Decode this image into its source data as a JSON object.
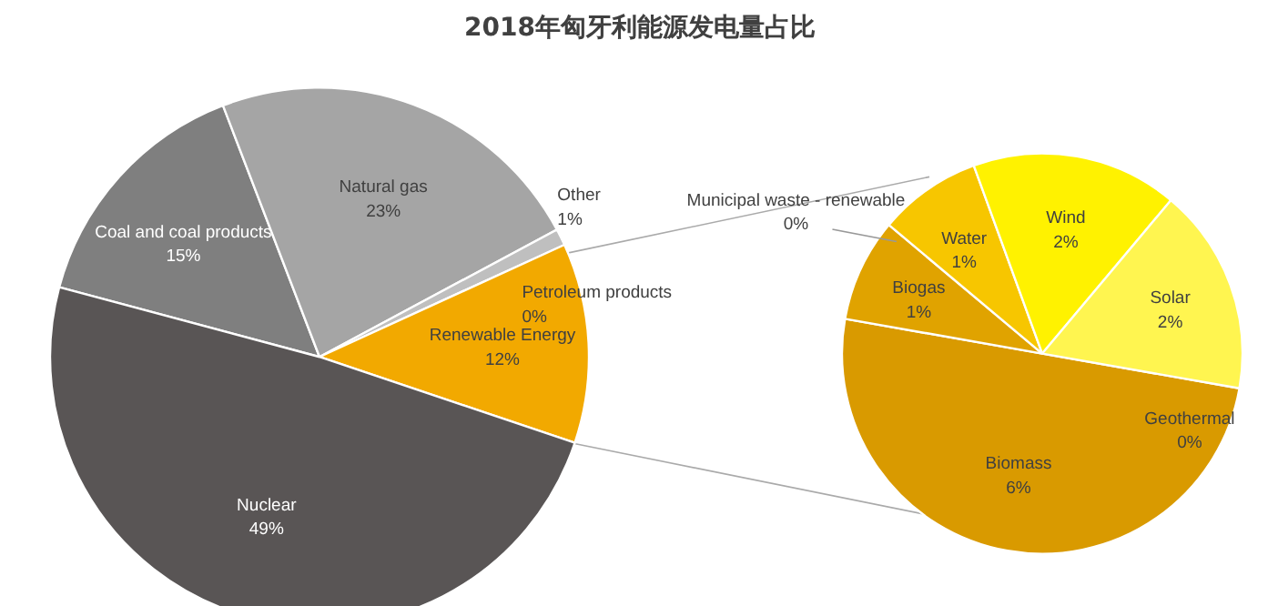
{
  "chart_data": [
    {
      "type": "pie",
      "title": "2018年匈牙利能源发电量占比",
      "categories": [
        "Coal and coal products",
        "Natural gas",
        "Other",
        "Petroleum products",
        "Renewable Energy",
        "Nuclear"
      ],
      "values": [
        15,
        23,
        1,
        0,
        12,
        49
      ],
      "colors": [
        "#7f7f7f",
        "#a5a5a5",
        "#bfbfbf",
        "#d9d9d9",
        "#f2a900",
        "#595555"
      ],
      "value_labels": [
        "15%",
        "23%",
        "1%",
        "0%",
        "12%",
        "49%"
      ]
    },
    {
      "type": "pie",
      "categories": [
        "Biomass",
        "Biogas",
        "Municipal waste - renewable",
        "Water",
        "Wind",
        "Solar",
        "Geothermal"
      ],
      "values": [
        6,
        1,
        0,
        1,
        2,
        2,
        0
      ],
      "colors": [
        "#d99a00",
        "#e0a300",
        "#f2b400",
        "#f7c600",
        "#fff200",
        "#fff550",
        "#fffbb0"
      ],
      "value_labels": [
        "6%",
        "1%",
        "0%",
        "1%",
        "2%",
        "2%",
        "0%"
      ]
    }
  ]
}
